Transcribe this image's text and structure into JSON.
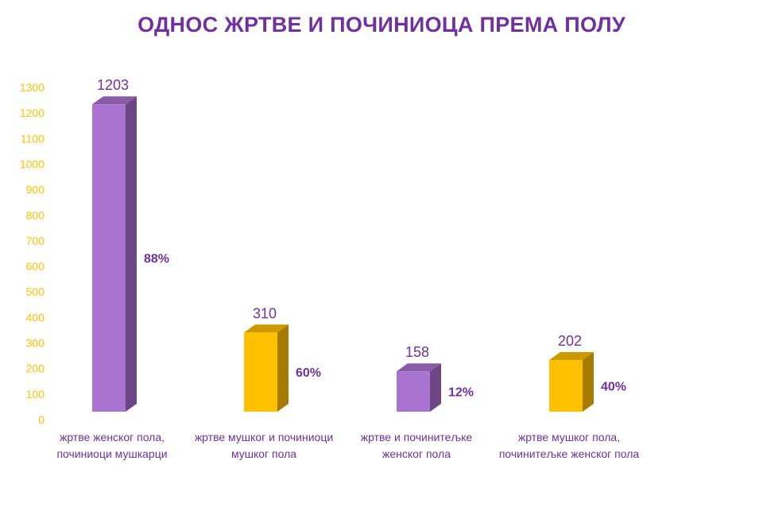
{
  "chart_data": {
    "type": "bar",
    "title": "ОДНОС ЖРТВЕ И ПОЧИНИОЦА ПРЕМА ПОЛУ",
    "categories": [
      "жртве женског пола, починиоци мушкарци",
      "жртве мушког и починиоци мушког пола",
      "жртве и починитељке женског пола",
      "жртве мушког пола, починитељке женског пола"
    ],
    "values": [
      1203,
      310,
      158,
      202
    ],
    "percent_labels": [
      "88%",
      "60%",
      "12%",
      "40%"
    ],
    "bar_colors": [
      "#a974d0",
      "#ffc000",
      "#a974d0",
      "#ffc000"
    ],
    "side_colors": [
      "#6d4686",
      "#a67c00",
      "#6d4686",
      "#a67c00"
    ],
    "top_colors": [
      "#8a5ca8",
      "#cc9900",
      "#8a5ca8",
      "#cc9900"
    ],
    "ylim": [
      0,
      1300
    ],
    "yticks": [
      0,
      100,
      200,
      300,
      400,
      500,
      600,
      700,
      800,
      900,
      1000,
      1100,
      1200,
      1300
    ],
    "xlabel": "",
    "ylabel": "",
    "grid": false,
    "axis_color": "#ffc000",
    "label_color": "#7030a0"
  }
}
